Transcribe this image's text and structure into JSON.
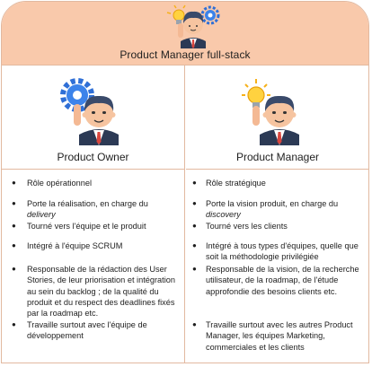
{
  "header": {
    "title": "Product Manager full-stack",
    "icon": "manager-with-bulb-and-gear"
  },
  "columns": [
    {
      "title": "Product Owner",
      "icon": "manager-with-gear",
      "items": [
        {
          "text": "Rôle opérationnel"
        },
        {
          "text": "Porte la réalisation, en charge du",
          "em": "delivery"
        },
        {
          "text": "Tourné vers l'équipe et le produit"
        },
        {
          "text": "Intégré à l'équipe SCRUM"
        },
        {
          "text": "Responsable de la rédaction des User Stories, de leur priorisation et intégration au sein du backlog ; de la qualité du produit et du respect des deadlines fixés par la roadmap etc."
        },
        {
          "text": "Travaille surtout avec l'équipe de développement"
        }
      ]
    },
    {
      "title": "Product Manager",
      "icon": "manager-with-lightbulb",
      "items": [
        {
          "text": "Rôle stratégique"
        },
        {
          "text": "Porte la vision produit, en charge du",
          "em": "discovery"
        },
        {
          "text": "Tourné vers les clients"
        },
        {
          "text": "Intégré à tous types d'équipes, quelle que soit la méthodologie privilégiée"
        },
        {
          "text": "Responsable de la vision, de la recherche utilisateur, de la roadmap, de l'étude approfondie des besoins clients etc."
        },
        {
          "text": "Travaille surtout avec les autres Product Manager, les équipes Marketing, commerciales et les clients"
        }
      ]
    }
  ]
}
